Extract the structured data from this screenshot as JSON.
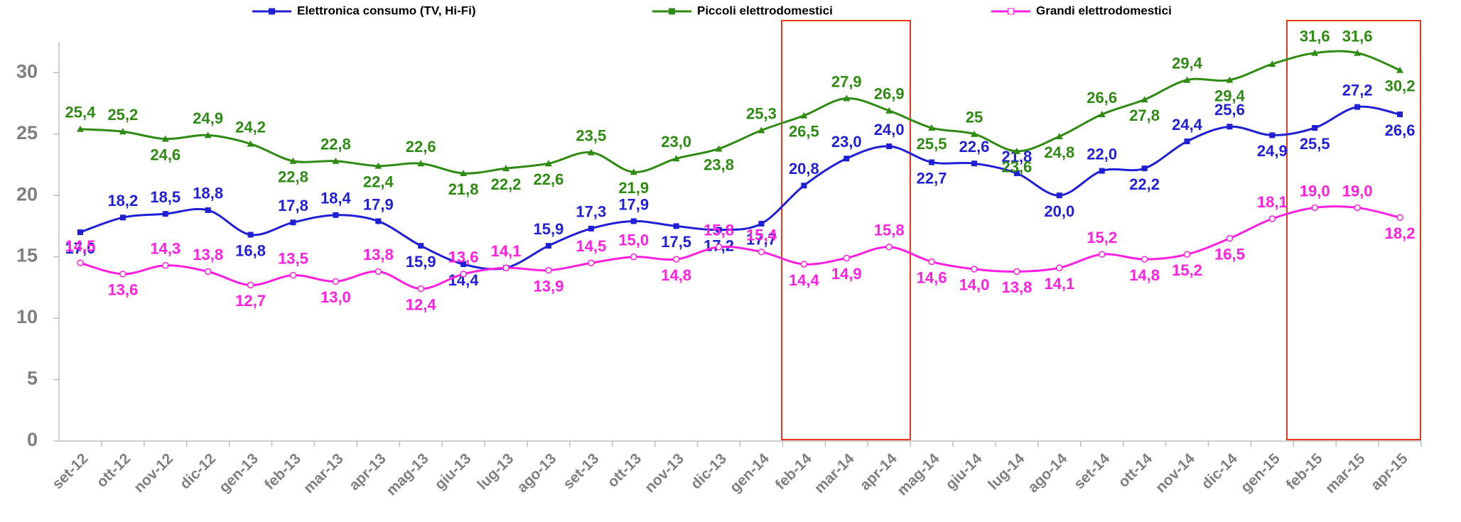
{
  "chart_data": {
    "type": "line",
    "categories": [
      "set-12",
      "ott-12",
      "nov-12",
      "dic-12",
      "gen-13",
      "feb-13",
      "mar-13",
      "apr-13",
      "mag-13",
      "giu-13",
      "lug-13",
      "ago-13",
      "set-13",
      "ott-13",
      "nov-13",
      "dic-13",
      "gen-14",
      "feb-14",
      "mar-14",
      "apr-14",
      "mag-14",
      "giu-14",
      "lug-14",
      "ago-14",
      "set-14",
      "ott-14",
      "nov-14",
      "dic-14",
      "gen-15",
      "feb-15",
      "mar-15",
      "apr-15"
    ],
    "series": [
      {
        "name": "Elettronica consumo (TV, Hi-Fi)",
        "color": "#1f1fd6",
        "marker": "square",
        "values": [
          17.0,
          18.2,
          18.5,
          18.8,
          16.8,
          17.8,
          18.4,
          17.9,
          15.9,
          14.4,
          14.1,
          15.9,
          17.3,
          17.9,
          17.5,
          17.2,
          17.7,
          20.8,
          23.0,
          24.0,
          22.7,
          22.6,
          21.8,
          20.0,
          22.0,
          22.2,
          24.4,
          25.6,
          24.9,
          25.5,
          27.2,
          26.6
        ],
        "value_labels": [
          "17,0",
          "18,2",
          "18,5",
          "18,8",
          "16,8",
          "17,8",
          "18,4",
          "17,9",
          "15,9",
          "14,4",
          null,
          "15,9",
          "17,3",
          "17,9",
          "17,5",
          "17,2",
          "17,7",
          "20,8",
          "23,0",
          "24,0",
          "22,7",
          "22,6",
          "21,8",
          "20,0",
          "22,0",
          "22,2",
          "24,4",
          "25,6",
          "24,9",
          "25,5",
          "27,2",
          "26,6"
        ]
      },
      {
        "name": "Piccoli elettrodomestici",
        "color": "#2e8b12",
        "marker": "triangle",
        "values": [
          25.4,
          25.2,
          24.6,
          24.9,
          24.2,
          22.8,
          22.8,
          22.4,
          22.6,
          21.8,
          22.2,
          22.6,
          23.5,
          21.9,
          23.0,
          23.8,
          25.3,
          26.5,
          27.9,
          26.9,
          25.5,
          25,
          23.6,
          24.8,
          26.6,
          27.8,
          29.4,
          29.4,
          30.7,
          31.6,
          31.6,
          30.2
        ],
        "value_labels": [
          "25,4",
          "25,2",
          "24,6",
          "24,9",
          "24,2",
          "22,8",
          "22,8",
          "22,4",
          "22,6",
          "21,8",
          "22,2",
          "22,6",
          "23,5",
          "21,9",
          "23,0",
          "23,8",
          "25,3",
          "26,5",
          "27,9",
          "26,9",
          "25,5",
          "25",
          "23,6",
          "24,8",
          "26,6",
          "27,8",
          "29,4",
          "29,4",
          null,
          "31,6",
          "31,6",
          "30,2"
        ]
      },
      {
        "name": "Grandi elettrodomestici",
        "color": "#ff1fe0",
        "marker": "circle",
        "values": [
          14.5,
          13.6,
          14.3,
          13.8,
          12.7,
          13.5,
          13.0,
          13.8,
          12.4,
          13.6,
          14.1,
          13.9,
          14.5,
          15.0,
          14.8,
          15.8,
          15.4,
          14.4,
          14.9,
          15.8,
          14.6,
          14.0,
          13.8,
          14.1,
          15.2,
          14.8,
          15.2,
          16.5,
          18.1,
          19.0,
          19.0,
          18.2
        ],
        "value_labels": [
          "14,5",
          "13,6",
          "14,3",
          "13,8",
          "12,7",
          "13,5",
          "13,0",
          "13,8",
          "12,4",
          "13,6",
          "14,1",
          "13,9",
          "14,5",
          "15,0",
          "14,8",
          "15,8",
          "15,4",
          "14,4",
          "14,9",
          "15,8",
          "14,6",
          "14,0",
          "13,8",
          "14,1",
          "15,2",
          "14,8",
          "15,2",
          "16,5",
          "18,1",
          "19,0",
          "19,0",
          "18,2"
        ]
      }
    ],
    "ylim": [
      0,
      32.5
    ],
    "yticks": [
      0,
      5,
      10,
      15,
      20,
      25,
      30
    ],
    "grid": false,
    "legend": "top"
  }
}
